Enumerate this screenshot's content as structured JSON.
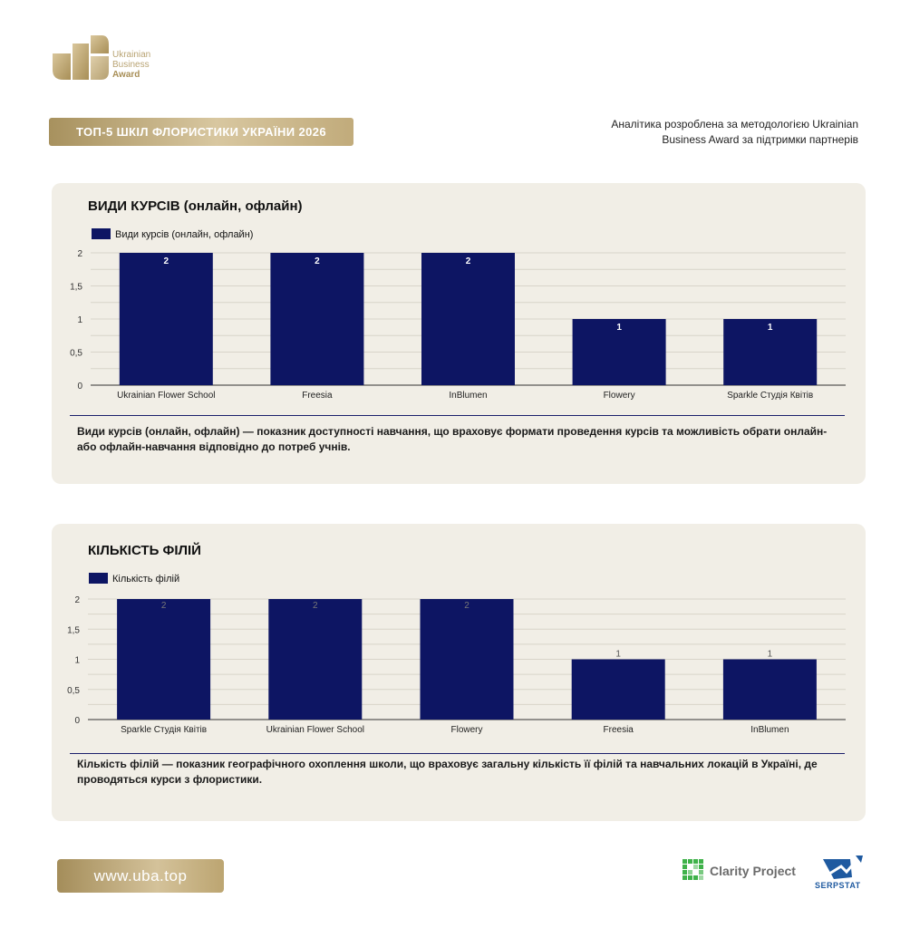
{
  "brand": {
    "logo_line1": "Ukrainian",
    "logo_line2": "Business",
    "logo_line3": "Award"
  },
  "header": {
    "title": "ТОП-5 ШКІЛ ФЛОРИСТИКИ УКРАЇНИ 2026",
    "methodology_line1": "Аналітика розроблена за методологією Ukrainian",
    "methodology_line2": "Business Award за підтримки партнерів"
  },
  "chart_data": [
    {
      "type": "bar",
      "title": "ВИДИ КУРСІВ (онлайн, офлайн)",
      "categories": [
        "Ukrainian Flower School",
        "Freesia",
        "InBlumen",
        "Flowery",
        "Sparkle Студія Квітів"
      ],
      "series": [
        {
          "name": "Види курсів (онлайн, офлайн)",
          "values": [
            2,
            2,
            2,
            1,
            1
          ]
        }
      ],
      "ylim": [
        0,
        2
      ],
      "yticks": [
        "0",
        "0,5",
        "1",
        "1,5",
        "2"
      ],
      "grid": true,
      "legend": "top-left",
      "bar_color": "#0d1563",
      "label_color": "#ffffff",
      "description": "Види курсів (онлайн, офлайн) — показник доступності навчання, що враховує формати проведення курсів та можливість обрати онлайн- або офлайн-навчання відповідно до потреб учнів."
    },
    {
      "type": "bar",
      "title": "КІЛЬКІСТЬ ФІЛІЙ",
      "categories": [
        "Sparkle Студія Квітів",
        "Ukrainian Flower School",
        "Flowery",
        "Freesia",
        "InBlumen"
      ],
      "series": [
        {
          "name": "Кількість філій",
          "values": [
            2,
            2,
            2,
            1,
            1
          ]
        }
      ],
      "ylim": [
        0,
        2
      ],
      "yticks": [
        "0",
        "0,5",
        "1",
        "1,5",
        "2"
      ],
      "grid": true,
      "legend": "top-left",
      "bar_color": "#0d1563",
      "label_color": "#777777",
      "description": "Кількість філій — показник географічного охоплення школи, що враховує загальну кількість її філій та навчальних локацій в Україні, де проводяться курси з флористики."
    }
  ],
  "footer": {
    "website": "www.uba.top",
    "partner1": "Clarity Project",
    "partner2": "SERPSTAT"
  }
}
